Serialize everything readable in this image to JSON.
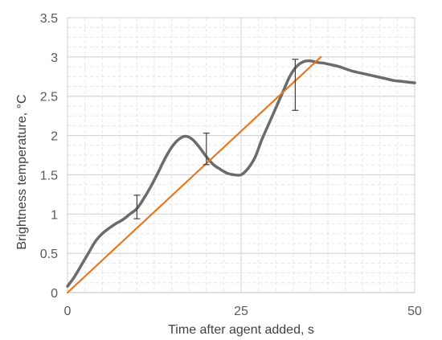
{
  "chart_data": {
    "type": "line",
    "title": "",
    "xlabel": "Time after agent added, s",
    "ylabel": "Brightness temperature, °C",
    "xlim": [
      0,
      50
    ],
    "ylim": [
      0,
      3.5
    ],
    "xticks": [
      0,
      25,
      50
    ],
    "yticks": [
      0,
      0.5,
      1,
      1.5,
      2,
      2.5,
      3,
      3.5
    ],
    "xtick_labels": [
      "0",
      "25",
      "50"
    ],
    "ytick_labels": [
      "0",
      "0.5",
      "1",
      "1.5",
      "2",
      "2.5",
      "3",
      "3.5"
    ],
    "grid": {
      "major_x": [
        25,
        50
      ],
      "minor_x_step": 2.5,
      "minor_y_step": 0.125,
      "on": true
    },
    "legend": "none",
    "series": [
      {
        "color": "#6b6b6b",
        "x": [
          0,
          1,
          2,
          3,
          4,
          5,
          6,
          7,
          8,
          9,
          10,
          11,
          12,
          13,
          14,
          15,
          16,
          17,
          18,
          19,
          20,
          21,
          22,
          23,
          24,
          25,
          26,
          27,
          28,
          29,
          30,
          31,
          32,
          33,
          34,
          35,
          36,
          37,
          38,
          39,
          40,
          41,
          42,
          43,
          44,
          45,
          46,
          47,
          48,
          49,
          50
        ],
        "y": [
          0.08,
          0.2,
          0.35,
          0.5,
          0.65,
          0.75,
          0.82,
          0.88,
          0.93,
          1.0,
          1.07,
          1.2,
          1.35,
          1.52,
          1.7,
          1.85,
          1.95,
          1.99,
          1.95,
          1.85,
          1.73,
          1.63,
          1.57,
          1.52,
          1.5,
          1.5,
          1.58,
          1.72,
          1.95,
          2.15,
          2.35,
          2.55,
          2.75,
          2.88,
          2.94,
          2.95,
          2.93,
          2.92,
          2.9,
          2.88,
          2.85,
          2.82,
          2.8,
          2.78,
          2.76,
          2.74,
          2.72,
          2.7,
          2.69,
          2.68,
          2.67
        ]
      },
      {
        "color": "#e87722",
        "x": [
          0,
          36.5
        ],
        "y": [
          0,
          3.0
        ]
      }
    ],
    "error_bars": [
      {
        "x": 10,
        "y": 1.1,
        "low": 0.94,
        "high": 1.24
      },
      {
        "x": 20,
        "y": 1.82,
        "low": 1.63,
        "high": 2.03
      },
      {
        "x": 32.8,
        "y": 2.65,
        "low": 2.32,
        "high": 2.97
      }
    ]
  }
}
